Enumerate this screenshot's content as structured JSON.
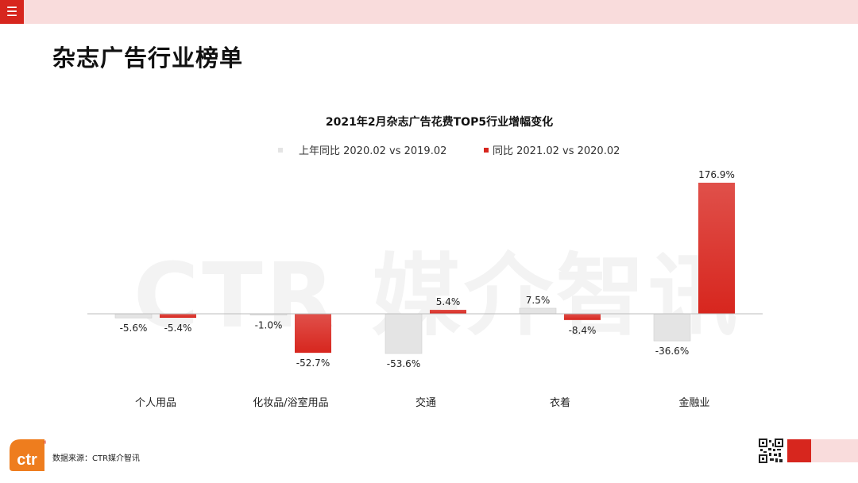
{
  "header": {
    "menu_icon": "menu-icon"
  },
  "page_title": "杂志广告行业榜单",
  "watermark": "CTR 媒介智讯",
  "chart_data": {
    "type": "bar",
    "title": "2021年2月杂志广告花费TOP5行业增幅变化",
    "categories": [
      "个人用品",
      "化妆品/浴室用品",
      "交通",
      "衣着",
      "金融业"
    ],
    "series": [
      {
        "name": "上年同比 2020.02 vs 2019.02",
        "color": "#e4e4e4",
        "values": [
          -5.6,
          -1.0,
          -53.6,
          7.5,
          -36.6
        ],
        "labels": [
          "-5.6%",
          "-1.0%",
          "-53.6%",
          "7.5%",
          "-36.6%"
        ]
      },
      {
        "name": "同比 2021.02 vs 2020.02",
        "color": "#d7261e",
        "values": [
          -5.4,
          -52.7,
          5.4,
          -8.4,
          176.9
        ],
        "labels": [
          "-5.4%",
          "-52.7%",
          "5.4%",
          "-8.4%",
          "176.9%"
        ]
      }
    ],
    "legend_position": "top",
    "grid": false
  },
  "footer": {
    "logo_text": "ctr",
    "logo_mark": "®",
    "source": "数据来源：CTR媒介智讯",
    "qr_icon": "qr-code-icon"
  },
  "colors": {
    "brand_red": "#d7261e",
    "light_pink": "#f9dcdc",
    "bar_gray": "#e4e4e4"
  }
}
